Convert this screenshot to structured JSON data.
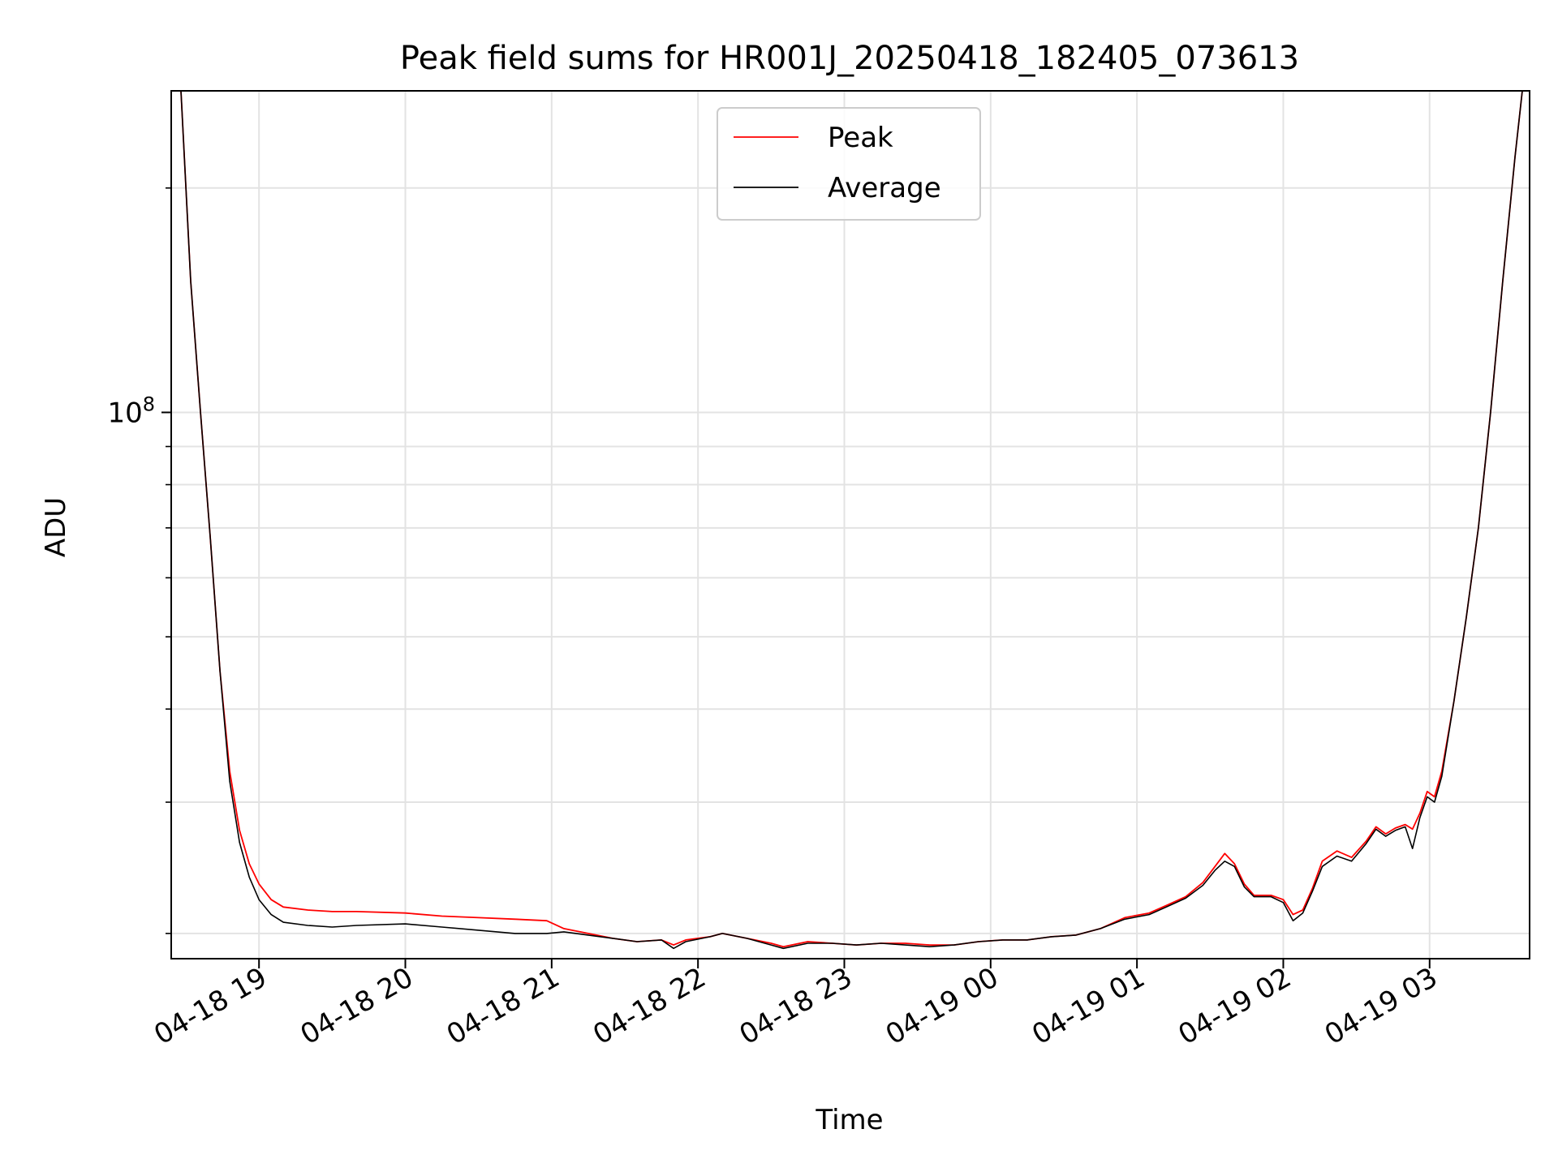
{
  "chart_data": {
    "type": "line",
    "title": "Peak field sums for HR001J_20250418_182405_073613",
    "xlabel": "Time",
    "ylabel": "ADU",
    "yscale": "log",
    "x_ticks": [
      "04-18 19",
      "04-18 20",
      "04-18 21",
      "04-18 22",
      "04-18 23",
      "04-19 00",
      "04-19 01",
      "04-19 02",
      "04-19 03"
    ],
    "y_tick_label": "10^8",
    "xlim": [
      "2025-04-18 18:24",
      "2025-04-19 03:41"
    ],
    "ylim": [
      18500000,
      270000000
    ],
    "grid": true,
    "legend_position": "upper center",
    "series": [
      {
        "name": "Peak",
        "color": "#ff0000",
        "points": [
          [
            "2025-04-18 18:24",
            270000000
          ],
          [
            "2025-04-18 18:28",
            270000000
          ],
          [
            "2025-04-18 18:32",
            150000000
          ],
          [
            "2025-04-18 18:36",
            100000000
          ],
          [
            "2025-04-18 18:40",
            68000000
          ],
          [
            "2025-04-18 18:44",
            45000000
          ],
          [
            "2025-04-18 18:48",
            33000000
          ],
          [
            "2025-04-18 18:52",
            27500000
          ],
          [
            "2025-04-18 18:56",
            24800000
          ],
          [
            "2025-04-18 19:00",
            23300000
          ],
          [
            "2025-04-18 19:05",
            22200000
          ],
          [
            "2025-04-18 19:10",
            21700000
          ],
          [
            "2025-04-18 19:20",
            21500000
          ],
          [
            "2025-04-18 19:30",
            21400000
          ],
          [
            "2025-04-18 19:40",
            21400000
          ],
          [
            "2025-04-18 20:00",
            21300000
          ],
          [
            "2025-04-18 20:15",
            21100000
          ],
          [
            "2025-04-18 20:30",
            21000000
          ],
          [
            "2025-04-18 20:45",
            20900000
          ],
          [
            "2025-04-18 20:58",
            20800000
          ],
          [
            "2025-04-18 21:05",
            20300000
          ],
          [
            "2025-04-18 21:15",
            20000000
          ],
          [
            "2025-04-18 21:25",
            19700000
          ],
          [
            "2025-04-18 21:35",
            19500000
          ],
          [
            "2025-04-18 21:45",
            19600000
          ],
          [
            "2025-04-18 21:50",
            19300000
          ],
          [
            "2025-04-18 21:55",
            19600000
          ],
          [
            "2025-04-18 22:05",
            19800000
          ],
          [
            "2025-04-18 22:10",
            20000000
          ],
          [
            "2025-04-18 22:20",
            19700000
          ],
          [
            "2025-04-18 22:30",
            19400000
          ],
          [
            "2025-04-18 22:35",
            19200000
          ],
          [
            "2025-04-18 22:45",
            19500000
          ],
          [
            "2025-04-18 22:55",
            19400000
          ],
          [
            "2025-04-18 23:05",
            19300000
          ],
          [
            "2025-04-18 23:15",
            19400000
          ],
          [
            "2025-04-18 23:25",
            19400000
          ],
          [
            "2025-04-18 23:35",
            19300000
          ],
          [
            "2025-04-18 23:45",
            19300000
          ],
          [
            "2025-04-18 23:55",
            19500000
          ],
          [
            "2025-04-19 00:05",
            19600000
          ],
          [
            "2025-04-19 00:15",
            19600000
          ],
          [
            "2025-04-19 00:25",
            19800000
          ],
          [
            "2025-04-19 00:35",
            19900000
          ],
          [
            "2025-04-19 00:45",
            20300000
          ],
          [
            "2025-04-19 00:55",
            21000000
          ],
          [
            "2025-04-19 01:05",
            21300000
          ],
          [
            "2025-04-19 01:12",
            21800000
          ],
          [
            "2025-04-19 01:20",
            22400000
          ],
          [
            "2025-04-19 01:27",
            23400000
          ],
          [
            "2025-04-19 01:32",
            24600000
          ],
          [
            "2025-04-19 01:36",
            25600000
          ],
          [
            "2025-04-19 01:40",
            24800000
          ],
          [
            "2025-04-19 01:44",
            23300000
          ],
          [
            "2025-04-19 01:48",
            22500000
          ],
          [
            "2025-04-19 01:55",
            22500000
          ],
          [
            "2025-04-19 02:00",
            22200000
          ],
          [
            "2025-04-19 02:04",
            21200000
          ],
          [
            "2025-04-19 02:08",
            21500000
          ],
          [
            "2025-04-19 02:12",
            23000000
          ],
          [
            "2025-04-19 02:16",
            25000000
          ],
          [
            "2025-04-19 02:22",
            25800000
          ],
          [
            "2025-04-19 02:28",
            25300000
          ],
          [
            "2025-04-19 02:34",
            26600000
          ],
          [
            "2025-04-19 02:38",
            27800000
          ],
          [
            "2025-04-19 02:42",
            27200000
          ],
          [
            "2025-04-19 02:46",
            27700000
          ],
          [
            "2025-04-19 02:50",
            28000000
          ],
          [
            "2025-04-19 02:53",
            27600000
          ],
          [
            "2025-04-19 02:56",
            29000000
          ],
          [
            "2025-04-19 02:59",
            31000000
          ],
          [
            "2025-04-19 03:02",
            30500000
          ],
          [
            "2025-04-19 03:05",
            33000000
          ],
          [
            "2025-04-19 03:10",
            41000000
          ],
          [
            "2025-04-19 03:15",
            53000000
          ],
          [
            "2025-04-19 03:20",
            70000000
          ],
          [
            "2025-04-19 03:25",
            100000000
          ],
          [
            "2025-04-19 03:30",
            150000000
          ],
          [
            "2025-04-19 03:35",
            220000000
          ],
          [
            "2025-04-19 03:38",
            270000000
          ]
        ]
      },
      {
        "name": "Average",
        "color": "#000000",
        "points": [
          [
            "2025-04-18 18:24",
            270000000
          ],
          [
            "2025-04-18 18:28",
            270000000
          ],
          [
            "2025-04-18 18:32",
            150000000
          ],
          [
            "2025-04-18 18:36",
            100000000
          ],
          [
            "2025-04-18 18:40",
            68000000
          ],
          [
            "2025-04-18 18:44",
            45000000
          ],
          [
            "2025-04-18 18:48",
            32000000
          ],
          [
            "2025-04-18 18:52",
            26500000
          ],
          [
            "2025-04-18 18:56",
            23800000
          ],
          [
            "2025-04-18 19:00",
            22200000
          ],
          [
            "2025-04-18 19:05",
            21200000
          ],
          [
            "2025-04-18 19:10",
            20700000
          ],
          [
            "2025-04-18 19:20",
            20500000
          ],
          [
            "2025-04-18 19:30",
            20400000
          ],
          [
            "2025-04-18 19:40",
            20500000
          ],
          [
            "2025-04-18 20:00",
            20600000
          ],
          [
            "2025-04-18 20:15",
            20400000
          ],
          [
            "2025-04-18 20:30",
            20200000
          ],
          [
            "2025-04-18 20:45",
            20000000
          ],
          [
            "2025-04-18 20:58",
            20000000
          ],
          [
            "2025-04-18 21:05",
            20100000
          ],
          [
            "2025-04-18 21:15",
            19900000
          ],
          [
            "2025-04-18 21:25",
            19700000
          ],
          [
            "2025-04-18 21:35",
            19500000
          ],
          [
            "2025-04-18 21:45",
            19600000
          ],
          [
            "2025-04-18 21:50",
            19100000
          ],
          [
            "2025-04-18 21:55",
            19500000
          ],
          [
            "2025-04-18 22:05",
            19800000
          ],
          [
            "2025-04-18 22:10",
            20000000
          ],
          [
            "2025-04-18 22:20",
            19700000
          ],
          [
            "2025-04-18 22:30",
            19300000
          ],
          [
            "2025-04-18 22:35",
            19100000
          ],
          [
            "2025-04-18 22:45",
            19400000
          ],
          [
            "2025-04-18 22:55",
            19400000
          ],
          [
            "2025-04-18 23:05",
            19300000
          ],
          [
            "2025-04-18 23:15",
            19400000
          ],
          [
            "2025-04-18 23:25",
            19300000
          ],
          [
            "2025-04-18 23:35",
            19200000
          ],
          [
            "2025-04-18 23:45",
            19300000
          ],
          [
            "2025-04-18 23:55",
            19500000
          ],
          [
            "2025-04-19 00:05",
            19600000
          ],
          [
            "2025-04-19 00:15",
            19600000
          ],
          [
            "2025-04-19 00:25",
            19800000
          ],
          [
            "2025-04-19 00:35",
            19900000
          ],
          [
            "2025-04-19 00:45",
            20300000
          ],
          [
            "2025-04-19 00:55",
            20900000
          ],
          [
            "2025-04-19 01:05",
            21200000
          ],
          [
            "2025-04-19 01:12",
            21700000
          ],
          [
            "2025-04-19 01:20",
            22300000
          ],
          [
            "2025-04-19 01:27",
            23200000
          ],
          [
            "2025-04-19 01:32",
            24300000
          ],
          [
            "2025-04-19 01:36",
            25000000
          ],
          [
            "2025-04-19 01:40",
            24600000
          ],
          [
            "2025-04-19 01:44",
            23100000
          ],
          [
            "2025-04-19 01:48",
            22400000
          ],
          [
            "2025-04-19 01:55",
            22400000
          ],
          [
            "2025-04-19 02:00",
            22000000
          ],
          [
            "2025-04-19 02:04",
            20800000
          ],
          [
            "2025-04-19 02:08",
            21300000
          ],
          [
            "2025-04-19 02:12",
            22800000
          ],
          [
            "2025-04-19 02:16",
            24600000
          ],
          [
            "2025-04-19 02:22",
            25400000
          ],
          [
            "2025-04-19 02:28",
            25000000
          ],
          [
            "2025-04-19 02:34",
            26400000
          ],
          [
            "2025-04-19 02:38",
            27600000
          ],
          [
            "2025-04-19 02:42",
            27000000
          ],
          [
            "2025-04-19 02:46",
            27500000
          ],
          [
            "2025-04-19 02:50",
            27800000
          ],
          [
            "2025-04-19 02:53",
            26000000
          ],
          [
            "2025-04-19 02:56",
            28600000
          ],
          [
            "2025-04-19 02:59",
            30500000
          ],
          [
            "2025-04-19 03:02",
            30000000
          ],
          [
            "2025-04-19 03:05",
            32500000
          ],
          [
            "2025-04-19 03:10",
            41000000
          ],
          [
            "2025-04-19 03:15",
            53000000
          ],
          [
            "2025-04-19 03:20",
            70000000
          ],
          [
            "2025-04-19 03:25",
            100000000
          ],
          [
            "2025-04-19 03:30",
            150000000
          ],
          [
            "2025-04-19 03:35",
            220000000
          ],
          [
            "2025-04-19 03:38",
            270000000
          ]
        ]
      }
    ]
  }
}
